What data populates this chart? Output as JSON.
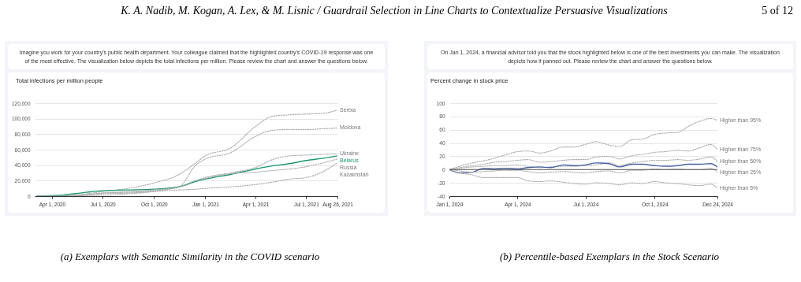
{
  "chart_data": [
    {
      "type": "line",
      "title": "Total infections per million people",
      "subtitle": "Imagine you work for your country's public health department. Your colleague claimed that the highlighted country's COVID-19 response was one of the most effective. The visualization below depicts the total infections per million. Please review the chart and answer the questions below.",
      "annotations": [
        "K. A. Nadib, M. Kogan, A. Lex, & M. Lisnic / Guardrail Selection in Line Charts to Contextualize Persuasive Visualizations",
        "5 of 12",
        "(a) Exemplars with Semantic Similarity in the COVID scenario"
      ],
      "x": [
        "2020-03-05",
        "2020-04-15",
        "2020-06-01",
        "2020-07-01",
        "2020-08-15",
        "2020-10-01",
        "2020-11-15",
        "2020-12-15",
        "2021-01-01",
        "2021-02-15",
        "2021-04-01",
        "2021-05-01",
        "2021-06-01",
        "2021-07-01",
        "2021-08-01",
        "2021-08-26"
      ],
      "series": [
        {
          "name": "Serbia",
          "color": "#aaaaaa",
          "values": [
            0,
            0,
            3000,
            6000,
            10000,
            17000,
            28000,
            43000,
            52000,
            62000,
            90000,
            103000,
            105000,
            106000,
            107000,
            111000
          ]
        },
        {
          "name": "Moldova",
          "color": "#aaaaaa",
          "values": [
            0,
            0,
            2000,
            4000,
            5000,
            7000,
            12000,
            40000,
            48000,
            56000,
            77000,
            85000,
            86000,
            86000,
            87000,
            88000
          ]
        },
        {
          "name": "Ukraine",
          "color": "#aaaaaa",
          "values": [
            0,
            0,
            1000,
            1000,
            3000,
            6000,
            12000,
            20000,
            24000,
            30000,
            37000,
            47000,
            52000,
            53000,
            54000,
            55000
          ]
        },
        {
          "name": "Belarus",
          "color": "#1a9a6c",
          "line_style": "solid",
          "values": [
            0,
            1000,
            5000,
            7000,
            8000,
            9000,
            12000,
            19000,
            22000,
            28000,
            35000,
            39000,
            42000,
            46000,
            49000,
            52000
          ]
        },
        {
          "name": "Russia",
          "color": "#aaaaaa",
          "values": [
            0,
            0,
            2000,
            4000,
            6000,
            8000,
            12000,
            20000,
            23000,
            29000,
            31000,
            33000,
            35000,
            38000,
            43000,
            48000
          ]
        },
        {
          "name": "Kazakhstan",
          "color": "#aaaaaa",
          "values": [
            0,
            0,
            1000,
            3000,
            4000,
            6000,
            8000,
            9000,
            10000,
            12000,
            15000,
            18000,
            22000,
            24000,
            32000,
            43000
          ]
        }
      ],
      "xlim": [
        "2020-03-01",
        "2021-08-26"
      ],
      "xticks": [
        {
          "value": "2020-04-01",
          "label": "Apr 1, 2020"
        },
        {
          "value": "2020-07-01",
          "label": "Jul 1, 2020"
        },
        {
          "value": "2020-10-01",
          "label": "Oct 1, 2020"
        },
        {
          "value": "2021-01-01",
          "label": "Jan 1, 2021"
        },
        {
          "value": "2021-04-01",
          "label": "Apr 1, 2021"
        },
        {
          "value": "2021-07-01",
          "label": "Jul 1, 2021"
        },
        {
          "value": "2021-08-26",
          "label": "Aug 26, 2021"
        }
      ],
      "ylim": [
        0,
        120000
      ],
      "yticks": [
        0,
        {
          "value": 20000,
          "label": "20,000"
        },
        {
          "value": 40000,
          "label": "40,000"
        },
        {
          "value": 60000,
          "label": "60,000"
        },
        {
          "value": 80000,
          "label": "80,000"
        },
        {
          "value": 100000,
          "label": "100,000"
        },
        {
          "value": 120000,
          "label": "120,000"
        }
      ],
      "grid": "y",
      "line_style": "dotted"
    },
    {
      "type": "line",
      "title": "Percent change in stock price",
      "subtitle": "On Jan 1, 2024, a financial advisor told you that the stock highlighted below is one of the best investments you can make. The visualization depicts how it panned out. Please review the chart and answer the questions below.",
      "annotations": [
        "(b) Percentile-based Exemplars in the Stock Scenario"
      ],
      "x": [
        "2024-01-01",
        "2024-01-15",
        "2024-02-01",
        "2024-02-15",
        "2024-03-01",
        "2024-03-15",
        "2024-04-01",
        "2024-04-15",
        "2024-05-01",
        "2024-05-15",
        "2024-06-01",
        "2024-06-15",
        "2024-07-01",
        "2024-07-15",
        "2024-08-01",
        "2024-08-15",
        "2024-09-01",
        "2024-09-15",
        "2024-10-01",
        "2024-10-15",
        "2024-11-01",
        "2024-11-15",
        "2024-12-01",
        "2024-12-15",
        "2024-12-24"
      ],
      "series": [
        {
          "name": "Higher than 95%",
          "color": "#aaaaaa",
          "values": [
            0,
            5,
            10,
            13,
            17,
            22,
            27,
            28,
            25,
            28,
            34,
            34,
            38,
            42,
            37,
            35,
            45,
            46,
            53,
            55,
            56,
            65,
            73,
            77,
            74
          ]
        },
        {
          "name": "Higher than 75%",
          "color": "#aaaaaa",
          "values": [
            0,
            3,
            6,
            8,
            11,
            12,
            14,
            15,
            11,
            12,
            14,
            15,
            15,
            19,
            20,
            16,
            21,
            23,
            26,
            27,
            29,
            28,
            33,
            38,
            30
          ]
        },
        {
          "name": "Higher than 50%",
          "color": "#aaaaaa",
          "values": [
            0,
            2,
            4,
            5,
            6,
            6,
            7,
            5,
            3,
            4,
            5,
            5,
            6,
            7,
            10,
            6,
            10,
            12,
            14,
            14,
            15,
            14,
            16,
            19,
            12
          ]
        },
        {
          "color": "#4a62a0",
          "line_style": "solid",
          "values": [
            0,
            -5,
            -4,
            2,
            1,
            2,
            1,
            3,
            4,
            3,
            7,
            6,
            7,
            10,
            9,
            4,
            8,
            8,
            6,
            5,
            6,
            8,
            8,
            9,
            4
          ]
        },
        {
          "name": "Higher than 25%",
          "color": "#aaaaaa",
          "values": [
            0,
            -2,
            -4,
            -3,
            -2,
            -1,
            -1,
            -3,
            -5,
            -4,
            -3,
            -4,
            -5,
            -3,
            -2,
            -5,
            -1,
            -1,
            1,
            0,
            1,
            0,
            0,
            2,
            -4
          ]
        },
        {
          "name": "Higher than 5%",
          "color": "#aaaaaa",
          "values": [
            0,
            -5,
            -8,
            -12,
            -12,
            -12,
            -12,
            -17,
            -18,
            -17,
            -19,
            -21,
            -22,
            -20,
            -21,
            -23,
            -20,
            -21,
            -18,
            -20,
            -21,
            -23,
            -24,
            -22,
            -28
          ]
        }
      ],
      "xlim": [
        "2024-01-01",
        "2024-12-24"
      ],
      "xticks": [
        {
          "value": "2024-01-01",
          "label": "Jan 1, 2024"
        },
        {
          "value": "2024-04-01",
          "label": "Apr 1, 2024"
        },
        {
          "value": "2024-07-01",
          "label": "Jul 1, 2024"
        },
        {
          "value": "2024-10-01",
          "label": "Oct 1, 2024"
        },
        {
          "value": "2024-12-24",
          "label": "Dec 24, 2024"
        }
      ],
      "ylim": [
        -40,
        100
      ],
      "yticks": [
        -40,
        -20,
        0,
        20,
        40,
        60,
        80,
        100
      ],
      "ref_lines": [
        {
          "axis": "y",
          "value": 0,
          "color": "#555555"
        }
      ],
      "grid": "y",
      "line_style": "dotted"
    }
  ]
}
